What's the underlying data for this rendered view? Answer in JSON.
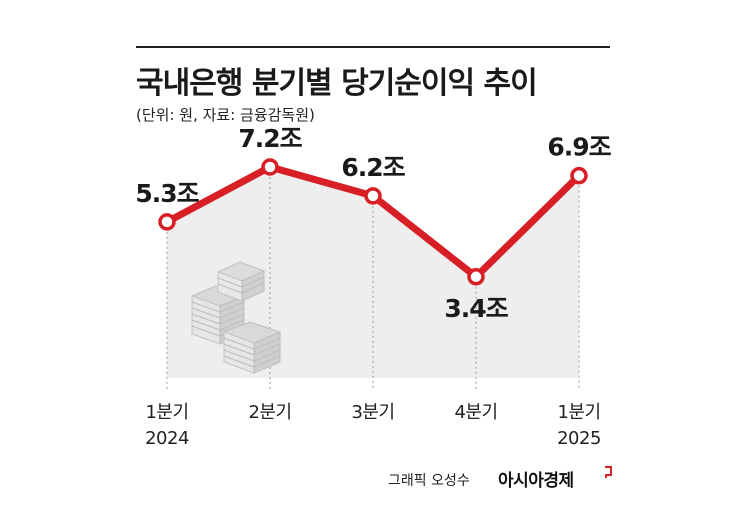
{
  "header": {
    "title": "국내은행 분기별 당기순이익 추이",
    "subtitle": "(단위: 원, 자료: 금융감독원)"
  },
  "footer": {
    "credit": "그래픽 오성수",
    "brand": "아시아경제"
  },
  "colors": {
    "line": "#d81f26",
    "marker_fill": "#ffffff",
    "area": "#eeeeee",
    "text": "#1a1a1a"
  },
  "chart_data": {
    "type": "line",
    "title": "국내은행 분기별 당기순이익 추이",
    "categories": [
      [
        "1분기",
        "2024"
      ],
      [
        "2분기",
        ""
      ],
      [
        "3분기",
        ""
      ],
      [
        "4분기",
        ""
      ],
      [
        "1분기",
        "2025"
      ]
    ],
    "values": [
      5.3,
      7.2,
      6.2,
      3.4,
      6.9
    ],
    "value_labels": [
      "5.3조",
      "7.2조",
      "6.2조",
      "3.4조",
      "6.9조"
    ],
    "unit": "조",
    "ylim": [
      0,
      9
    ],
    "grid": "vertical dashed",
    "legend": "none",
    "decoration": "money-stack-icon"
  }
}
